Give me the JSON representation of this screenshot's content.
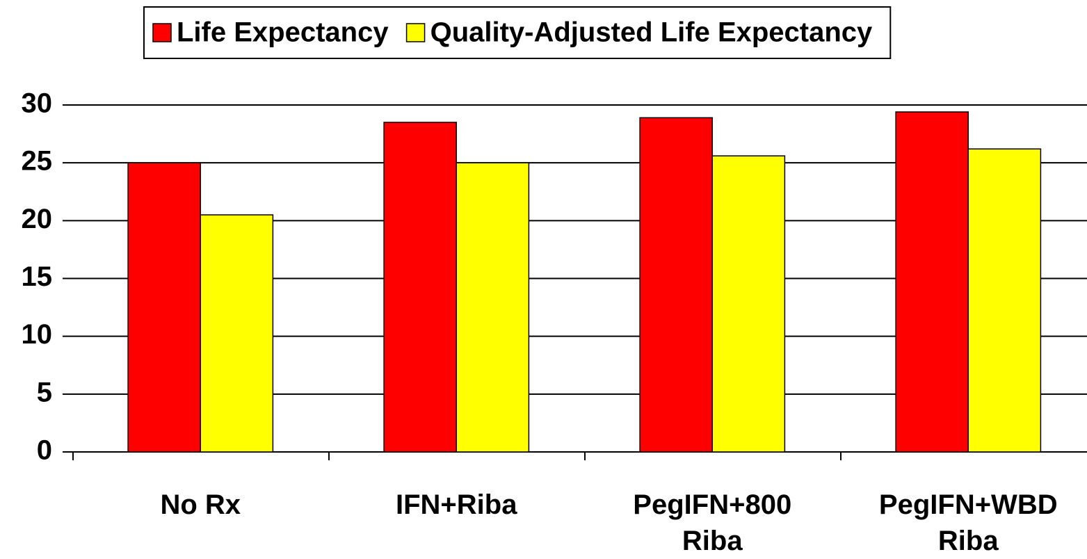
{
  "chart_data": {
    "type": "bar",
    "categories": [
      "No Rx",
      "IFN+Riba",
      "PegIFN+800 Riba",
      "PegIFN+WBD Riba"
    ],
    "series": [
      {
        "name": "Life Expectancy",
        "color": "#ff0000",
        "values": [
          25,
          28.5,
          28.9,
          29.4
        ]
      },
      {
        "name": "Quality-Adjusted Life Expectancy",
        "color": "#ffff00",
        "values": [
          20.5,
          25,
          25.6,
          26.2
        ]
      }
    ],
    "ylim": [
      0,
      30
    ],
    "yticks": [
      0,
      5,
      10,
      15,
      20,
      25,
      30
    ],
    "grid": true,
    "legend": "top"
  }
}
